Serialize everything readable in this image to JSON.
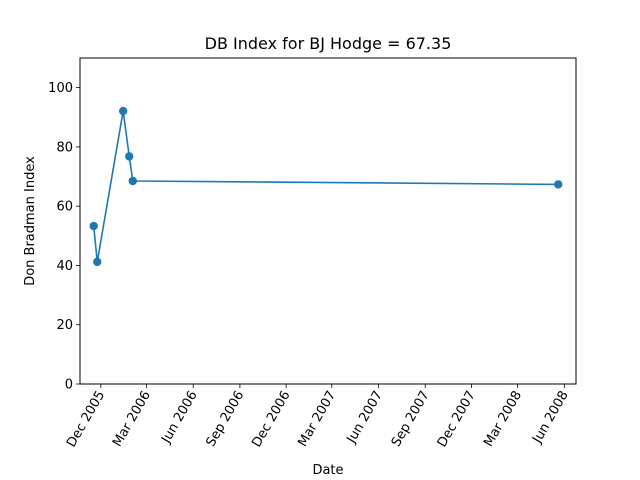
{
  "chart_data": {
    "type": "line",
    "title": "DB Index for BJ Hodge = 67.35",
    "xlabel": "Date",
    "ylabel": "Don Bradman Index",
    "ylim": [
      0,
      110
    ],
    "yticks": [
      0,
      20,
      40,
      60,
      80,
      100
    ],
    "xlim": [
      "2005-10-21",
      "2008-06-24"
    ],
    "xticks": [
      {
        "date": "2005-12-01",
        "label": "Dec 2005"
      },
      {
        "date": "2006-03-01",
        "label": "Mar 2006"
      },
      {
        "date": "2006-06-01",
        "label": "Jun 2006"
      },
      {
        "date": "2006-09-01",
        "label": "Sep 2006"
      },
      {
        "date": "2006-12-01",
        "label": "Dec 2006"
      },
      {
        "date": "2007-03-01",
        "label": "Mar 2007"
      },
      {
        "date": "2007-06-01",
        "label": "Jun 2007"
      },
      {
        "date": "2007-09-01",
        "label": "Sep 2007"
      },
      {
        "date": "2007-12-01",
        "label": "Dec 2007"
      },
      {
        "date": "2008-03-01",
        "label": "Mar 2008"
      },
      {
        "date": "2008-06-01",
        "label": "Jun 2008"
      }
    ],
    "series": [
      {
        "color": "#1f77b4",
        "points": [
          {
            "x": "2005-11-17",
            "y": 53.3
          },
          {
            "x": "2005-11-24",
            "y": 41.2
          },
          {
            "x": "2006-01-14",
            "y": 92.1
          },
          {
            "x": "2006-01-26",
            "y": 76.8
          },
          {
            "x": "2006-02-02",
            "y": 68.5
          },
          {
            "x": "2008-05-20",
            "y": 67.35
          }
        ]
      }
    ],
    "grid": false
  }
}
